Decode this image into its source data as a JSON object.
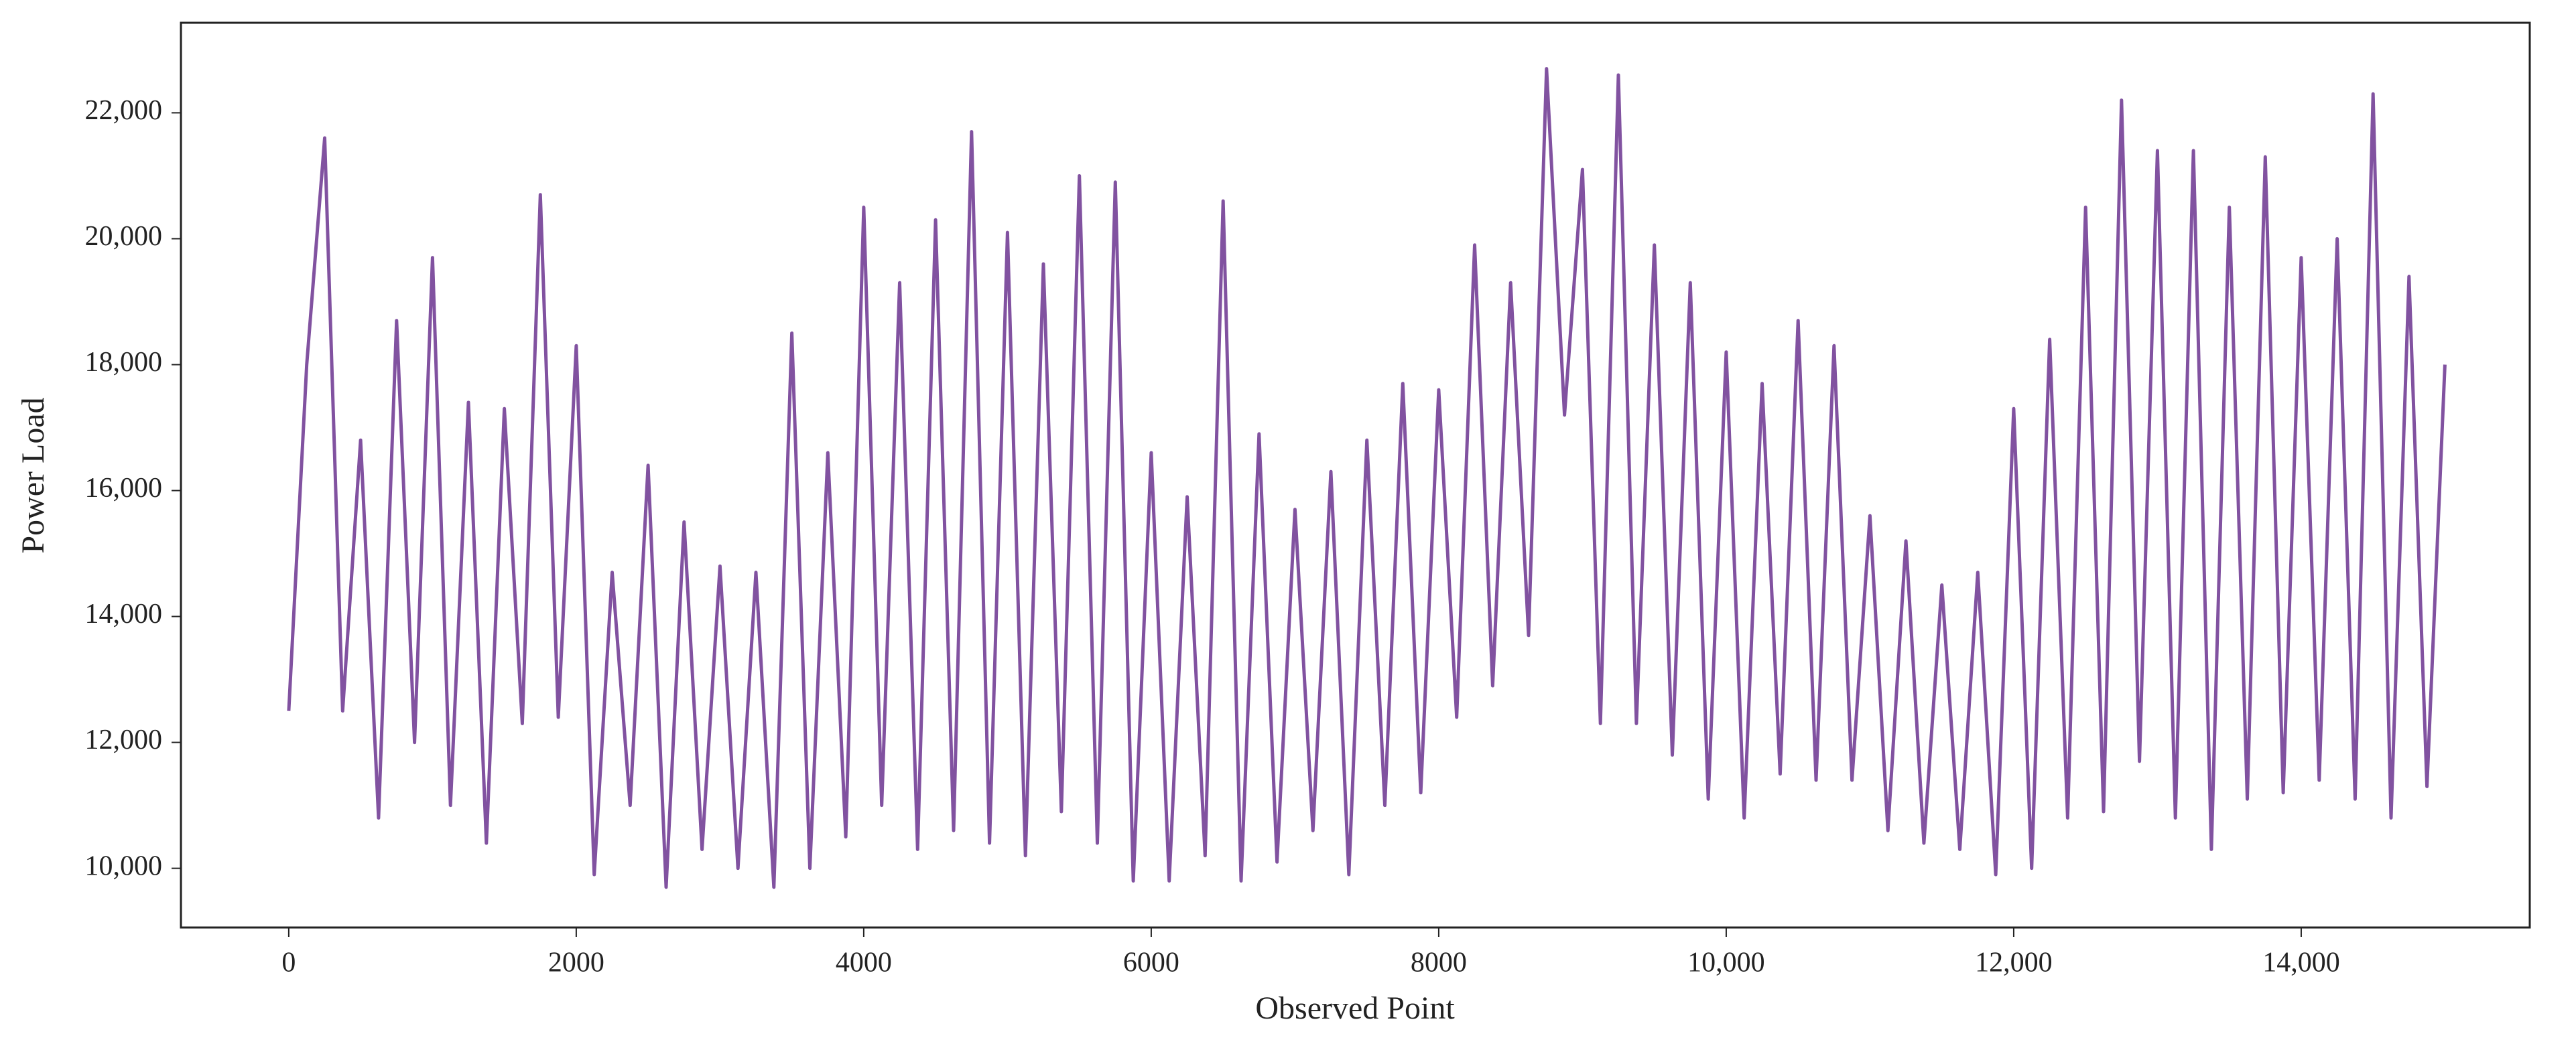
{
  "chart_data": {
    "type": "line",
    "x_label": "Observed Point",
    "y_label": "Power Load",
    "x": [
      0,
      125,
      250,
      375,
      500,
      625,
      750,
      875,
      1000,
      1125,
      1250,
      1375,
      1500,
      1625,
      1750,
      1875,
      2000,
      2125,
      2250,
      2375,
      2500,
      2625,
      2750,
      2875,
      3000,
      3125,
      3250,
      3375,
      3500,
      3625,
      3750,
      3875,
      4000,
      4125,
      4250,
      4375,
      4500,
      4625,
      4750,
      4875,
      5000,
      5125,
      5250,
      5375,
      5500,
      5625,
      5750,
      5875,
      6000,
      6125,
      6250,
      6375,
      6500,
      6625,
      6750,
      6875,
      7000,
      7125,
      7250,
      7375,
      7500,
      7625,
      7750,
      7875,
      8000,
      8125,
      8250,
      8375,
      8500,
      8625,
      8750,
      8875,
      9000,
      9125,
      9250,
      9375,
      9500,
      9625,
      9750,
      9875,
      10000,
      10125,
      10250,
      10375,
      10500,
      10625,
      10750,
      10875,
      11000,
      11125,
      11250,
      11375,
      11500,
      11625,
      11750,
      11875,
      12000,
      12125,
      12250,
      12375,
      12500,
      12625,
      12750,
      12875,
      13000,
      13125,
      13250,
      13375,
      13500,
      13625,
      13750,
      13875,
      14000,
      14125,
      14250,
      14375,
      14500,
      14625,
      14750,
      14875,
      15000
    ],
    "series": [
      {
        "name": "Power Load",
        "color": "#8152a0",
        "values": [
          12500,
          18000,
          21600,
          12500,
          16800,
          10800,
          18700,
          12000,
          19700,
          11000,
          17400,
          10400,
          17300,
          12300,
          20700,
          12400,
          18300,
          9900,
          14700,
          11000,
          16400,
          9700,
          15500,
          10300,
          14800,
          10000,
          14700,
          9700,
          18500,
          10000,
          16600,
          10500,
          20500,
          11000,
          19300,
          10300,
          20300,
          10600,
          21700,
          10400,
          20100,
          10200,
          19600,
          10900,
          21000,
          10400,
          20900,
          9800,
          16600,
          9800,
          15900,
          10200,
          20600,
          9800,
          16900,
          10100,
          15700,
          10600,
          16300,
          9900,
          16800,
          11000,
          17700,
          11200,
          17600,
          12400,
          19900,
          12900,
          19300,
          13700,
          22700,
          17200,
          21100,
          12300,
          22600,
          12300,
          19900,
          11800,
          19300,
          11100,
          18200,
          10800,
          17700,
          11500,
          18700,
          11400,
          18300,
          11400,
          15600,
          10600,
          15200,
          10400,
          14500,
          10300,
          14700,
          9900,
          17300,
          10000,
          18400,
          10800,
          20500,
          10900,
          22200,
          11700,
          21400,
          10800,
          21400,
          10300,
          20500,
          11100,
          21300,
          11200,
          19700,
          11400,
          20000,
          11100,
          22300,
          10800,
          19400,
          11300,
          18000
        ]
      }
    ],
    "xlim": [
      -750,
      15590
    ],
    "ylim": [
      9060,
      23430
    ],
    "xticks": [
      0,
      2000,
      4000,
      6000,
      8000,
      {
        "value": 10000,
        "label": "10,000"
      },
      {
        "value": 12000,
        "label": "12,000"
      },
      {
        "value": 14000,
        "label": "14,000"
      }
    ],
    "yticks": [
      {
        "value": 10000,
        "label": "10,000"
      },
      {
        "value": 12000,
        "label": "12,000"
      },
      {
        "value": 14000,
        "label": "14,000"
      },
      {
        "value": 16000,
        "label": "16,000"
      },
      {
        "value": 18000,
        "label": "18,000"
      },
      {
        "value": 20000,
        "label": "20,000"
      },
      {
        "value": 22000,
        "label": "22,000"
      }
    ],
    "grid": false
  }
}
